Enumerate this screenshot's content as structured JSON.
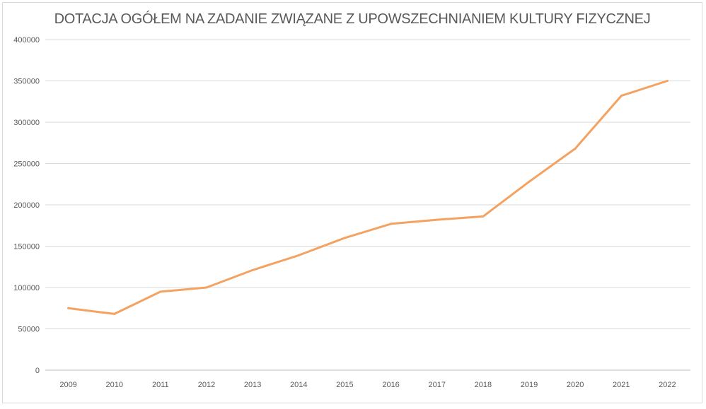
{
  "chart_data": {
    "type": "line",
    "title": "DOTACJA OGÓŁEM NA ZADANIE ZWIĄZANE Z UPOWSZECHNIANIEM KULTURY FIZYCZNEJ",
    "xlabel": "",
    "ylabel": "",
    "categories": [
      "2009",
      "2010",
      "2011",
      "2012",
      "2013",
      "2014",
      "2015",
      "2016",
      "2017",
      "2018",
      "2019",
      "2020",
      "2021",
      "2022"
    ],
    "series": [
      {
        "values": [
          75000,
          68000,
          95000,
          100000,
          121000,
          139000,
          160000,
          177000,
          182000,
          186000,
          228000,
          268000,
          332000,
          350000
        ]
      }
    ],
    "ylim": [
      0,
      400000
    ],
    "yticks": [
      "0",
      "50000",
      "100000",
      "150000",
      "200000",
      "250000",
      "300000",
      "350000",
      "400000"
    ],
    "grid": true,
    "legend": "none",
    "line_color": "#f4a261"
  }
}
